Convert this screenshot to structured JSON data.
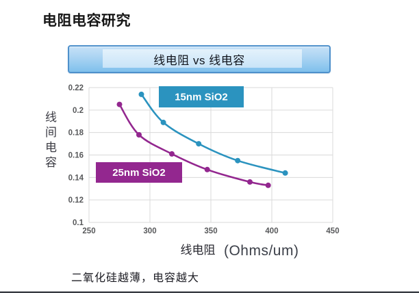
{
  "slide": {
    "title": "电阻电容研究",
    "banner_label": "线电阻 vs 线电容",
    "note": "二氧化硅越薄，电容越大"
  },
  "colors": {
    "banner_border": "#4E90CB",
    "grid": "#D9D9D9",
    "tick_text": "#58595B",
    "series_blue": "#2B93BF",
    "series_purple": "#93278F"
  },
  "chart_data": {
    "type": "line",
    "title": "线电阻 vs 线电容",
    "xlabel": "线电阻",
    "xlabel_unit": "(Ohms/um)",
    "ylabel": "线间电容",
    "xlim": [
      250,
      450
    ],
    "ylim": [
      0.1,
      0.22
    ],
    "xticks": [
      "250",
      "300",
      "350",
      "400",
      "450"
    ],
    "yticks": [
      "0.22",
      "0.2",
      "0.18",
      "0.16",
      "0.14",
      "0.12",
      "0.1"
    ],
    "grid": true,
    "legend_position": "inline-boxes",
    "series": [
      {
        "name": "15nm SiO2",
        "color": "#2B93BF",
        "label_text_color": "#FFFFFF",
        "points": [
          [
            293,
            0.214
          ],
          [
            311,
            0.189
          ],
          [
            340,
            0.17
          ],
          [
            372,
            0.155
          ],
          [
            411,
            0.144
          ]
        ]
      },
      {
        "name": "25nm SiO2",
        "color": "#93278F",
        "label_text_color": "#FFFFFF",
        "points": [
          [
            275,
            0.205
          ],
          [
            291,
            0.178
          ],
          [
            318,
            0.161
          ],
          [
            347,
            0.147
          ],
          [
            382,
            0.136
          ],
          [
            397,
            0.133
          ]
        ]
      }
    ]
  }
}
